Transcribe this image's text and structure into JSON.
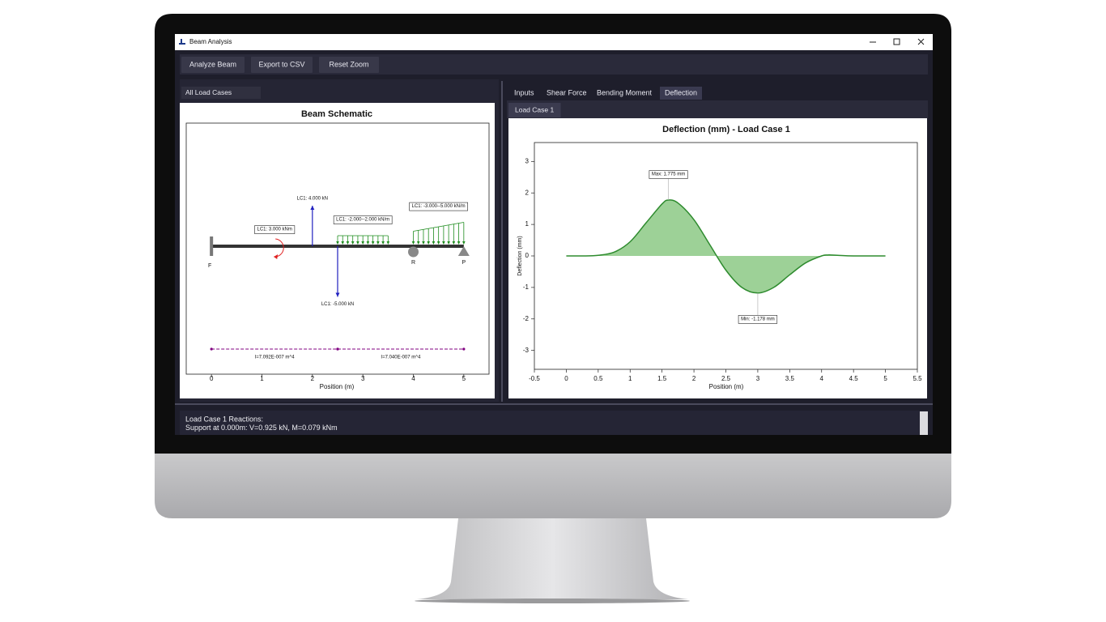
{
  "window": {
    "title": "Beam Analysis"
  },
  "toolbar": {
    "buttons": [
      "Analyze Beam",
      "Export to CSV",
      "Reset Zoom"
    ]
  },
  "left_panel": {
    "load_case_select": "All Load Cases",
    "schematic": {
      "title": "Beam Schematic",
      "x_label": "Position (m)",
      "xlim": [
        -0.5,
        5.5
      ],
      "xticks": [
        0,
        1,
        2,
        3,
        4,
        5
      ],
      "supports": [
        {
          "label": "F",
          "position": 0,
          "kind": "fixed"
        },
        {
          "label": "R",
          "position": 4,
          "kind": "roller"
        },
        {
          "label": "P",
          "position": 5,
          "kind": "pin"
        }
      ],
      "point_loads": [
        {
          "label": "LC1: 4.000 kN",
          "position": 2,
          "value": 4
        },
        {
          "label": "LC1: -5.000 kN",
          "position": 2.5,
          "value": -5
        }
      ],
      "moments": [
        {
          "label": "LC1: 3.000 kNm",
          "position": 1.3,
          "value": 3
        }
      ],
      "distributed_loads": [
        {
          "label": "LC1: -2.000--2.000 kN/m",
          "start": 2.5,
          "end": 3.5,
          "w_start": -2,
          "w_end": -2
        },
        {
          "label": "LC1: -3.000--5.000 kN/m",
          "start": 4,
          "end": 5,
          "w_start": -3,
          "w_end": -5
        }
      ],
      "sections": [
        {
          "label": "I=7.092E-007 m^4",
          "start": 0,
          "end": 2.5
        },
        {
          "label": "I=7.040E-007 m^4",
          "start": 2.5,
          "end": 5
        }
      ]
    }
  },
  "right_panel": {
    "tabs": [
      {
        "label": "Inputs"
      },
      {
        "label": "Shear Force"
      },
      {
        "label": "Bending Moment"
      },
      {
        "label": "Deflection",
        "selected": true
      }
    ],
    "sub_tabs": [
      "Load Case 1"
    ]
  },
  "chart_data": {
    "type": "area",
    "title": "Deflection (mm) - Load Case 1",
    "x_label": "Position (m)",
    "y_label": "Deflection (mm)",
    "xlim": [
      -0.5,
      5.5
    ],
    "ylim": [
      -3.6,
      3.6
    ],
    "xticks": [
      -0.5,
      0,
      0.5,
      1,
      1.5,
      2,
      2.5,
      3,
      3.5,
      4,
      4.5,
      5,
      5.5
    ],
    "yticks": [
      -3,
      -2,
      -1,
      0,
      1,
      2,
      3
    ],
    "color": "#2e8b2e",
    "fill": "#9dd197",
    "x": [
      0,
      0.25,
      0.5,
      0.75,
      1.0,
      1.25,
      1.5,
      1.6,
      1.75,
      2.0,
      2.25,
      2.5,
      2.75,
      3.0,
      3.25,
      3.5,
      3.75,
      4.0,
      4.1,
      4.25,
      4.5,
      5.0
    ],
    "values": [
      0,
      0,
      0.02,
      0.12,
      0.45,
      1.05,
      1.65,
      1.775,
      1.68,
      1.15,
      0.35,
      -0.45,
      -1.0,
      -1.178,
      -1.0,
      -0.6,
      -0.22,
      0,
      0.03,
      0.02,
      0,
      0
    ],
    "annotations": [
      {
        "text": "Max: 1.775 mm",
        "x": 1.6,
        "y": 1.775
      },
      {
        "text": "Min: -1.178 mm",
        "x": 3.0,
        "y": -1.178
      }
    ]
  },
  "output": {
    "lines": [
      "Load Case 1 Reactions:",
      "Support at 0.000m: V=0.925 kN, M=0.079 kNm"
    ]
  }
}
